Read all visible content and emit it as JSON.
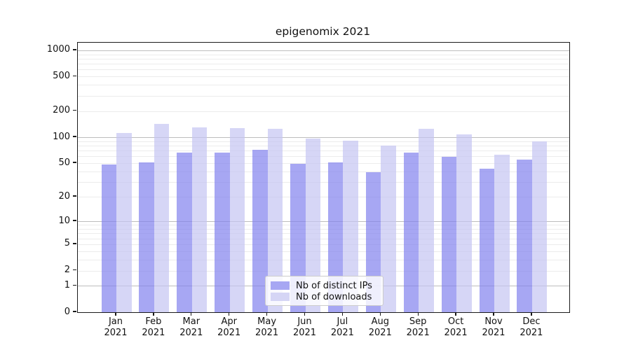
{
  "title": "epigenomix 2021",
  "chart_data": {
    "type": "bar",
    "title": "epigenomix 2021",
    "categories": [
      "Jan 2021",
      "Feb 2021",
      "Mar 2021",
      "Apr 2021",
      "May 2021",
      "Jun 2021",
      "Jul 2021",
      "Aug 2021",
      "Sep 2021",
      "Oct 2021",
      "Nov 2021",
      "Dec 2021"
    ],
    "series": [
      {
        "name": "Nb of distinct IPs",
        "color": "#a7a7f3",
        "values": [
          48,
          51,
          67,
          66,
          72,
          49,
          51,
          39,
          66,
          59,
          43,
          55
        ]
      },
      {
        "name": "Nb of downloads",
        "color": "#d5d5f5",
        "values": [
          113,
          142,
          130,
          128,
          126,
          96,
          92,
          80,
          125,
          108,
          63,
          89
        ]
      }
    ],
    "ylabel": "",
    "xlabel": "",
    "yscale": "log10(value+1)",
    "ylim": [
      0,
      1222
    ],
    "y_ticks": [
      1000,
      500,
      200,
      100,
      50,
      20,
      10,
      5,
      2,
      1,
      0
    ],
    "grid": "horizontal major+minor",
    "legend_position": "inside lower-center"
  },
  "legend": {
    "items": [
      {
        "label": "Nb of distinct IPs",
        "color": "#a7a7f3"
      },
      {
        "label": "Nb of downloads",
        "color": "#d5d5f5"
      }
    ]
  },
  "colors": {
    "background": "#ffffff",
    "bar_ips": "#a7a7f3",
    "bar_downloads": "#d5d5f5",
    "bar_ips_rgba": "rgba(130,130,238,0.70)",
    "bar_downloads_rgba": "rgba(196,196,242,0.70)",
    "grid_major": "#bdbdbd",
    "grid_minor": "#ececec",
    "spine": "#1a1a1a",
    "legend_border": "#cccccc",
    "text": "#000000"
  }
}
